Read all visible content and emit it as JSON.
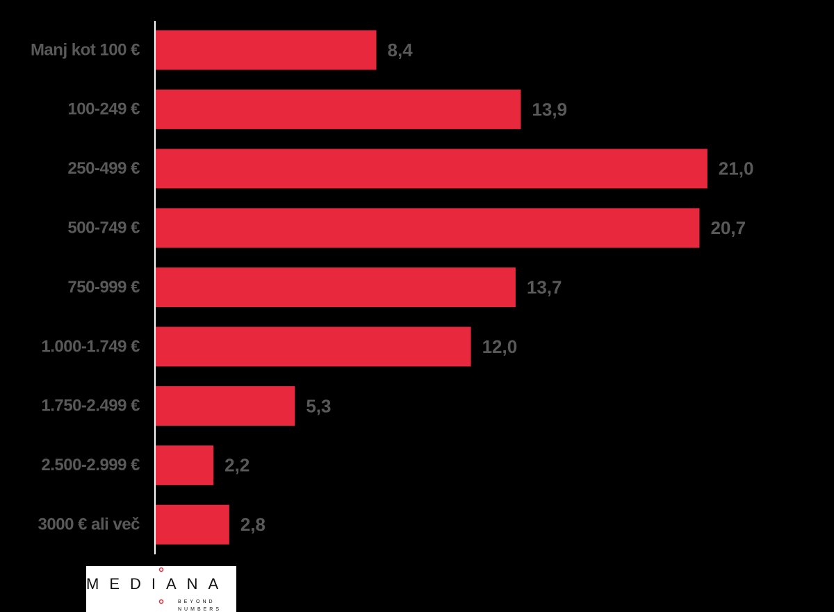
{
  "chart_data": {
    "type": "bar",
    "orientation": "horizontal",
    "categories": [
      "Manj kot 100 €",
      "100-249 €",
      "250-499 €",
      "500-749 €",
      "750-999 €",
      "1.000-1.749 €",
      "1.750-2.499 €",
      "2.500-2.999 €",
      "3000 € ali več"
    ],
    "values": [
      8.4,
      13.9,
      21.0,
      20.7,
      13.7,
      12.0,
      5.3,
      2.2,
      2.8
    ],
    "value_labels": [
      "8,4",
      "13,9",
      "21,0",
      "20,7",
      "13,7",
      "12,0",
      "5,3",
      "2,2",
      "2,8"
    ],
    "color": "#e8283c"
  },
  "logo": {
    "name": "MEDIANA",
    "tagline": [
      "BEYOND",
      "NUMBERS"
    ]
  }
}
